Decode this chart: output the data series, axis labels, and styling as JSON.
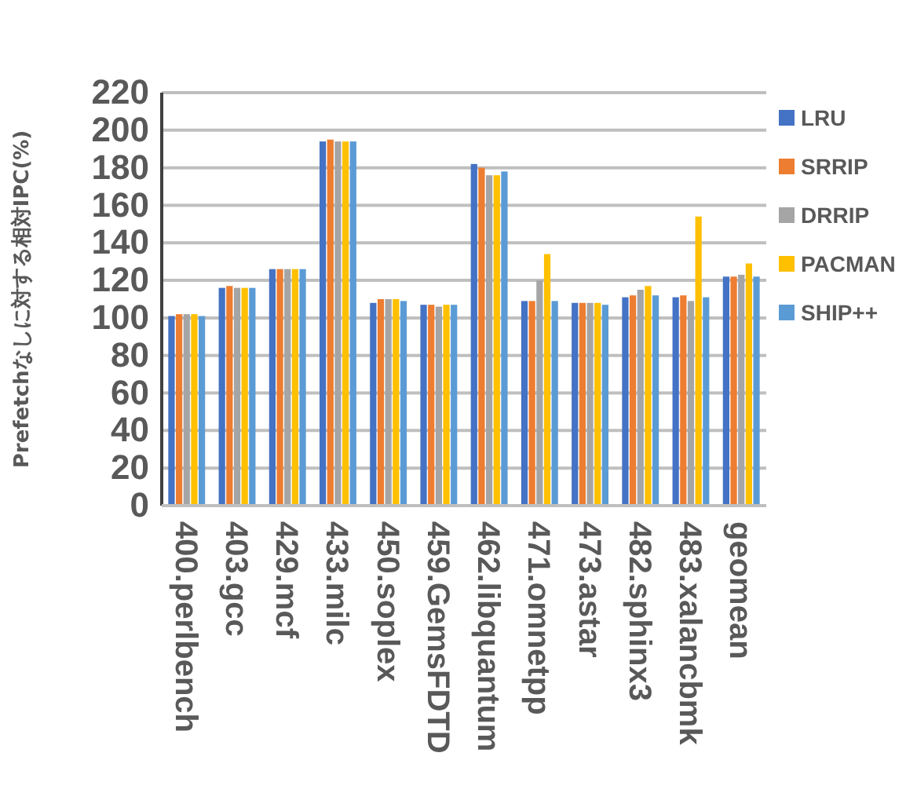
{
  "chart_data": {
    "type": "bar",
    "ylabel": "Prefetchなしに対する相対IPC(%)",
    "categories": [
      "400.perlbench",
      "403.gcc",
      "429.mcf",
      "433.milc",
      "450.soplex",
      "459.GemsFDTD",
      "462.libquantum",
      "471.omnetpp",
      "473.astar",
      "482.sphinx3",
      "483.xalancbmk",
      "geomean"
    ],
    "series": [
      {
        "name": "LRU",
        "color": "#4472c4",
        "values": [
          101,
          116,
          126,
          194,
          108,
          107,
          182,
          109,
          108,
          111,
          111,
          122
        ]
      },
      {
        "name": "SRRIP",
        "color": "#ed7d31",
        "values": [
          102,
          117,
          126,
          195,
          110,
          107,
          180,
          109,
          108,
          112,
          112,
          122
        ]
      },
      {
        "name": "DRRIP",
        "color": "#a5a5a5",
        "values": [
          102,
          116,
          126,
          194,
          110,
          106,
          176,
          120,
          108,
          115,
          109,
          123
        ]
      },
      {
        "name": "PACMAN",
        "color": "#ffc000",
        "values": [
          102,
          116,
          126,
          194,
          110,
          107,
          176,
          134,
          108,
          117,
          154,
          129
        ]
      },
      {
        "name": "SHIP++",
        "color": "#5b9bd5",
        "values": [
          101,
          116,
          126,
          194,
          109,
          107,
          178,
          109,
          107,
          112,
          111,
          122
        ]
      }
    ],
    "ylim": [
      0,
      220
    ],
    "yticks": [
      0,
      20,
      40,
      60,
      80,
      100,
      120,
      140,
      160,
      180,
      200,
      220
    ],
    "grid": "y",
    "legend": "right"
  }
}
